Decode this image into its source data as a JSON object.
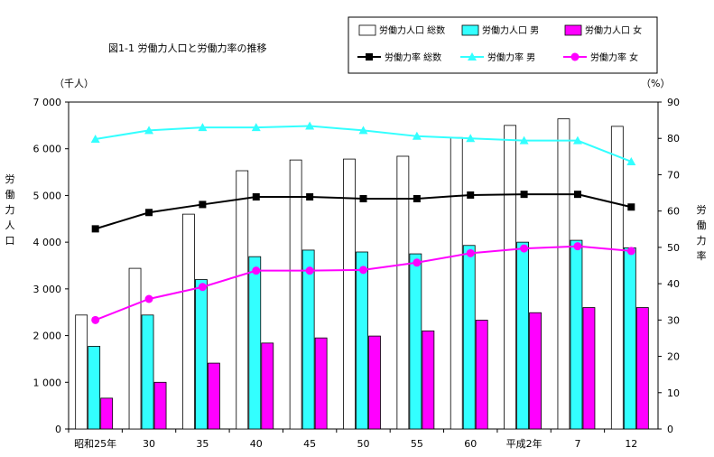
{
  "chart_data": {
    "type": "bar",
    "title": "図1-1 労働力人口と労働力率の推移",
    "categories": [
      "昭和25年",
      "30",
      "35",
      "40",
      "45",
      "50",
      "55",
      "60",
      "平成2年",
      "7",
      "12"
    ],
    "left_axis": {
      "unit": "（千人）",
      "label": "労働力人口",
      "ylim": [
        0,
        7000
      ],
      "ticks": [
        "0",
        "1 000",
        "2 000",
        "3 000",
        "4 000",
        "5 000",
        "6 000",
        "7 000"
      ],
      "tick_values": [
        0,
        1000,
        2000,
        3000,
        4000,
        5000,
        6000,
        7000
      ]
    },
    "right_axis": {
      "unit": "（%）",
      "label": "労働力率",
      "ylim": [
        0,
        90
      ],
      "ticks": [
        "0",
        "10",
        "20",
        "30",
        "40",
        "50",
        "60",
        "70",
        "80",
        "90"
      ],
      "tick_values": [
        0,
        10,
        20,
        30,
        40,
        50,
        60,
        70,
        80,
        90
      ]
    },
    "bar_series": [
      {
        "name": "労働力人口 総数",
        "color": "#ffffff",
        "values": [
          2440,
          3440,
          4600,
          5530,
          5760,
          5780,
          5840,
          6240,
          6500,
          6640,
          6480
        ]
      },
      {
        "name": "労働力人口 男",
        "color": "#33ffff",
        "values": [
          1770,
          2440,
          3200,
          3690,
          3830,
          3790,
          3750,
          3930,
          4000,
          4040,
          3880
        ]
      },
      {
        "name": "労働力人口 女",
        "color": "#ff00ff",
        "values": [
          660,
          1000,
          1410,
          1840,
          1950,
          1990,
          2100,
          2330,
          2490,
          2600,
          2600
        ]
      }
    ],
    "line_series": [
      {
        "name": "労働力率 総数",
        "color": "#000000",
        "marker": "square",
        "values": [
          55.1,
          59.6,
          61.8,
          63.9,
          63.9,
          63.4,
          63.4,
          64.4,
          64.6,
          64.6,
          61.1
        ]
      },
      {
        "name": "労働力率 男",
        "color": "#33ffff",
        "marker": "triangle",
        "values": [
          79.8,
          82.2,
          83.0,
          83.0,
          83.4,
          82.2,
          80.6,
          80.0,
          79.4,
          79.4,
          73.6
        ]
      },
      {
        "name": "労働力率 女",
        "color": "#ff00ff",
        "marker": "circle",
        "values": [
          30.0,
          35.8,
          39.1,
          43.6,
          43.6,
          43.8,
          45.8,
          48.4,
          49.7,
          50.3,
          49.0
        ]
      }
    ],
    "legend_position": "top-right",
    "grid": false
  }
}
